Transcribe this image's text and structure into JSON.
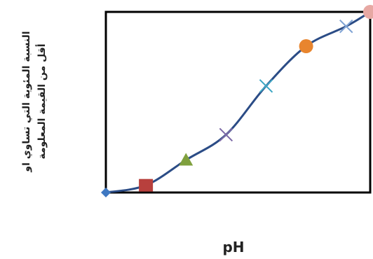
{
  "chart_data": {
    "type": "line",
    "xlabel": "pH",
    "ylabel_lines": [
      "النسبة المئوية التي تساوي او",
      "أقل من القيمة المعلومة"
    ],
    "grid": false,
    "legend": "none",
    "line_color": "#2B4C86",
    "series": [
      {
        "values": [
          {
            "x": 0,
            "y": 0,
            "marker": "diamond",
            "color": "#3E78C2"
          },
          {
            "x": 1,
            "y": 4,
            "marker": "square",
            "color": "#B8403D"
          },
          {
            "x": 2,
            "y": 18,
            "marker": "triangle",
            "color": "#7FA03D"
          },
          {
            "x": 3,
            "y": 32,
            "marker": "x",
            "color": "#7B68A6"
          },
          {
            "x": 4,
            "y": 59,
            "marker": "x",
            "color": "#3DA6C4"
          },
          {
            "x": 5,
            "y": 81,
            "marker": "circle",
            "color": "#E8852E"
          },
          {
            "x": 6,
            "y": 92,
            "marker": "x",
            "color": "#7FA3D4"
          },
          {
            "x": 6.6,
            "y": 100,
            "marker": "circle",
            "color": "#E7A8A3"
          }
        ]
      }
    ]
  }
}
